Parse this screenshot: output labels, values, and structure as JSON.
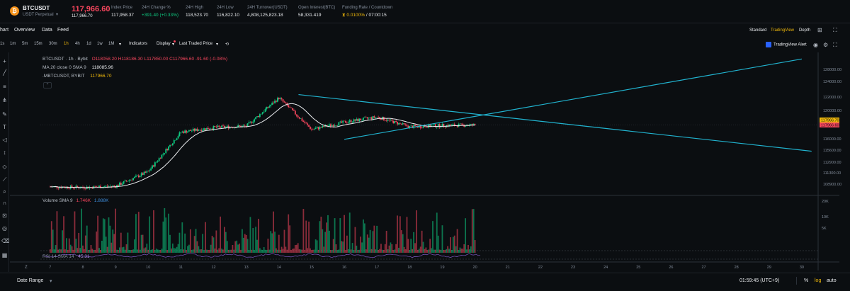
{
  "ticker": {
    "symbol": "BTCUSDT",
    "symbol_sub": "USDT Perpetual",
    "last_price": "117,966.60",
    "last_sub": "117,966.70",
    "stats": [
      {
        "label": "Index Price",
        "value": "117,958.37"
      },
      {
        "label": "24H Change %",
        "value": "+391.40 (+0.33%)"
      },
      {
        "label": "24H High",
        "value": "118,523.70"
      },
      {
        "label": "24H Low",
        "value": "116,822.10"
      },
      {
        "label": "24H Turnover(USDT)",
        "value": "4,808,125,823.18"
      },
      {
        "label": "Open Interest(BTC)",
        "value": "58,331.419"
      },
      {
        "label": "Funding Rate / Countdown",
        "rate": "0.0100%",
        "countdown": "/ 07:00:15"
      }
    ]
  },
  "tabs": {
    "items": [
      "hart",
      "Overview",
      "Data",
      "Feed"
    ],
    "modes": [
      "Standard",
      "TradingView",
      "Depth"
    ]
  },
  "intervals": {
    "items": [
      "1s",
      "1m",
      "5m",
      "15m",
      "30m",
      "1h",
      "4h",
      "1d",
      "1w",
      "1M"
    ],
    "active": "1h",
    "indicators": "Indicators",
    "display": "Display",
    "price_type": "Last Traded Price"
  },
  "legend": {
    "line1_prefix": "BTCUSDT · 1h · Bybit",
    "ohlc": "O118058.20 H118186.30 L117850.00 C117966.60 -91.60 (-0.08%)",
    "ma_label": "MA 20 close 0 SMA 9",
    "ma_value": "118085.96",
    "mb_label": ".MBTCUSDT, BYBIT",
    "mb_value": "117966.70",
    "volume_label": "Volume SMA 9",
    "volume_v1": "1.746K",
    "volume_v2": "1.888K",
    "rsi_label": "RSI 14 SMA 14",
    "rsi_value": "45.31"
  },
  "tv_alert": "TradingView Alert",
  "price_axis": [
    "128000.00",
    "124000.00",
    "122000.00",
    "120000.00",
    "116000.00",
    "115600.00",
    "112900.00",
    "111300.00",
    "108900.00"
  ],
  "price_tags": [
    "117966.70",
    "117966.60"
  ],
  "volume_axis": [
    "20K",
    "10K",
    "5K"
  ],
  "time_axis": [
    "7",
    "8",
    "9",
    "10",
    "11",
    "12",
    "13",
    "14",
    "15",
    "16",
    "17",
    "18",
    "19",
    "20",
    "21",
    "22",
    "23",
    "24",
    "25",
    "26",
    "27",
    "28",
    "29",
    "30"
  ],
  "bottom": {
    "date_range": "Date Range",
    "clock": "01:59:45 (UTC+9)",
    "pct": "%",
    "log": "log",
    "auto": "auto"
  },
  "colors": {
    "up": "#0ecb81",
    "down": "#f6465d",
    "ma": "#eaecef",
    "trendline": "#21b3cf",
    "accent": "#f0b90b"
  },
  "chart_data": {
    "type": "candlestick",
    "title": "BTCUSDT · 1h · Bybit",
    "xlabel": "",
    "ylabel": "",
    "ylim": [
      107500,
      129000
    ],
    "x_range_days": [
      6.7,
      30.5
    ],
    "daily_closes": [
      {
        "day": 7,
        "close": 108600
      },
      {
        "day": 8,
        "close": 108500
      },
      {
        "day": 9,
        "close": 108700
      },
      {
        "day": 10,
        "close": 110900
      },
      {
        "day": 11,
        "close": 116900
      },
      {
        "day": 12,
        "close": 117600
      },
      {
        "day": 13,
        "close": 117800
      },
      {
        "day": 14,
        "close": 122100
      },
      {
        "day": 15,
        "close": 117300
      },
      {
        "day": 16,
        "close": 118400
      },
      {
        "day": 17,
        "close": 119200
      },
      {
        "day": 18,
        "close": 117700
      },
      {
        "day": 19,
        "close": 117900
      },
      {
        "day": 20,
        "close": 117966.6
      }
    ],
    "trendlines": [
      {
        "name": "upper",
        "from": {
          "day": 14.6,
          "price": 122600
        },
        "to": {
          "day": 30.3,
          "price": 114000
        }
      },
      {
        "name": "lower",
        "from": {
          "day": 16.0,
          "price": 115800
        },
        "to": {
          "day": 30.0,
          "price": 128000
        }
      }
    ]
  }
}
